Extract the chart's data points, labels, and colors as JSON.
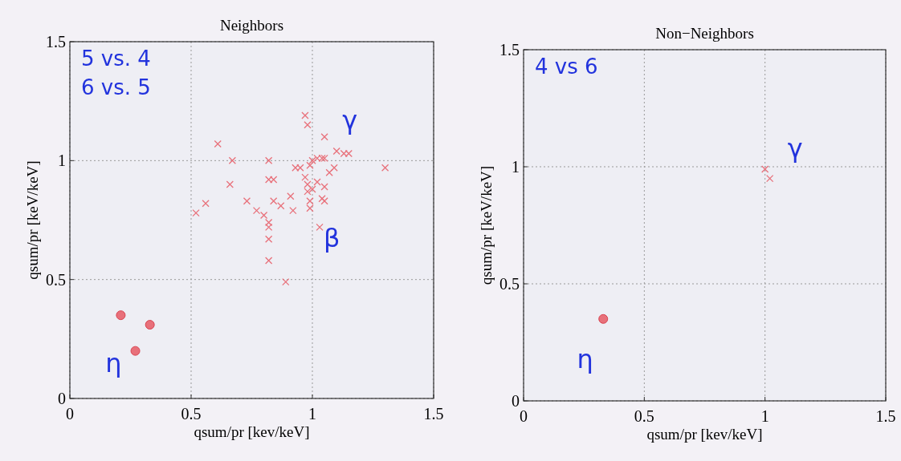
{
  "chart_data": [
    {
      "type": "scatter",
      "title": "Neighbors",
      "xlabel": "qsum/pr [kev/keV]",
      "ylabel": "qsum/pr [keV/keV]",
      "xlim": [
        0,
        1.5
      ],
      "ylim": [
        0,
        1.5
      ],
      "xticks": [
        0,
        0.5,
        1,
        1.5
      ],
      "yticks": [
        0,
        0.5,
        1,
        1.5
      ],
      "grid": true,
      "annotations": [
        "5 vs. 4",
        "6 vs. 5",
        "γ",
        "β",
        "η"
      ],
      "series": [
        {
          "color": "#e8707a",
          "marker": "cross",
          "x": [
            0.97,
            0.98,
            1.05,
            0.61,
            0.67,
            0.82,
            0.66,
            0.82,
            0.84,
            0.73,
            0.77,
            0.8,
            0.82,
            0.82,
            0.82,
            0.82,
            0.89,
            0.52,
            0.56,
            0.84,
            0.87,
            0.91,
            0.92,
            0.99,
            1.03,
            1.04,
            1.05,
            0.93,
            0.95,
            0.99,
            1.0,
            1.02,
            1.04,
            1.05,
            0.97,
            0.98,
            1.0,
            1.02,
            1.05,
            1.07,
            1.09,
            1.1,
            1.13,
            1.15,
            1.3,
            0.98,
            0.99
          ],
          "values": [
            1.19,
            1.15,
            1.1,
            1.07,
            1.0,
            1.0,
            0.9,
            0.92,
            0.92,
            0.83,
            0.79,
            0.77,
            0.74,
            0.72,
            0.67,
            0.58,
            0.49,
            0.78,
            0.82,
            0.83,
            0.81,
            0.85,
            0.79,
            0.8,
            0.72,
            0.84,
            0.83,
            0.97,
            0.97,
            0.98,
            1.0,
            1.01,
            1.01,
            1.01,
            0.93,
            0.9,
            0.88,
            0.91,
            0.89,
            0.95,
            0.97,
            1.04,
            1.03,
            1.03,
            0.97,
            0.87,
            0.83
          ]
        },
        {
          "color": "#e8707a",
          "marker": "circle",
          "x": [
            0.21,
            0.33,
            0.27
          ],
          "values": [
            0.35,
            0.31,
            0.2
          ]
        }
      ]
    },
    {
      "type": "scatter",
      "title": "Non−Neighbors",
      "xlabel": "qsum/pr [kev/keV]",
      "ylabel": "qsum/pr [keV/keV]",
      "xlim": [
        0,
        1.5
      ],
      "ylim": [
        0,
        1.5
      ],
      "xticks": [
        0,
        0.5,
        1,
        1.5
      ],
      "yticks": [
        0,
        0.5,
        1,
        1.5
      ],
      "grid": true,
      "annotations": [
        "4 vs 6",
        "γ",
        "η"
      ],
      "series": [
        {
          "color": "#e8707a",
          "marker": "cross",
          "x": [
            1.0,
            1.02
          ],
          "values": [
            0.99,
            0.95
          ]
        },
        {
          "color": "#e8707a",
          "marker": "circle",
          "x": [
            0.33
          ],
          "values": [
            0.35
          ]
        }
      ]
    }
  ]
}
